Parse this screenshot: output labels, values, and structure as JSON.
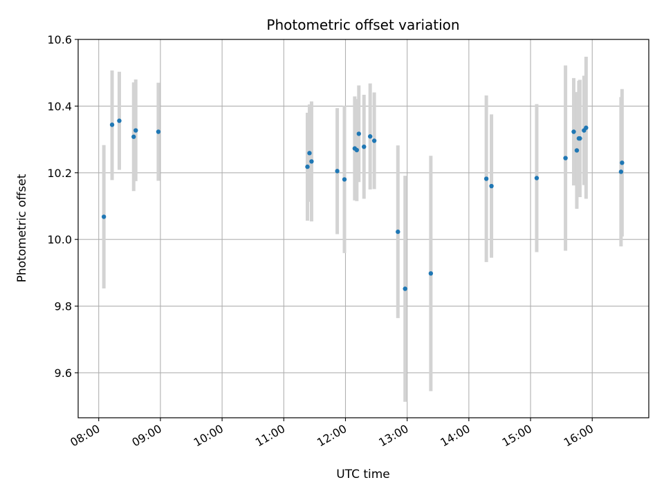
{
  "chart_data": {
    "type": "scatter",
    "title": "Photometric offset variation",
    "xlabel": "UTC time",
    "ylabel": "Photometric offset",
    "xlim": [
      "07:40",
      "16:55"
    ],
    "ylim": [
      9.465,
      10.6
    ],
    "x_ticks": [
      "08:00",
      "09:00",
      "10:00",
      "11:00",
      "12:00",
      "13:00",
      "14:00",
      "15:00",
      "16:00"
    ],
    "y_ticks": [
      9.6,
      9.8,
      10.0,
      10.2,
      10.4,
      10.6
    ],
    "y_tick_labels": [
      "9.6",
      "9.8",
      "10.0",
      "10.2",
      "10.4",
      "10.6"
    ],
    "grid": true,
    "colors": {
      "points": "#1f77b4",
      "errorbars": "#d3d3d3",
      "grid": "#b0b0b0"
    },
    "points": [
      {
        "x": "08:05",
        "y": 10.068,
        "low": 9.853,
        "high": 10.283
      },
      {
        "x": "08:13",
        "y": 10.344,
        "low": 10.178,
        "high": 10.507
      },
      {
        "x": "08:20",
        "y": 10.356,
        "low": 10.209,
        "high": 10.503
      },
      {
        "x": "08:34",
        "y": 10.308,
        "low": 10.145,
        "high": 10.471
      },
      {
        "x": "08:36",
        "y": 10.327,
        "low": 10.175,
        "high": 10.48
      },
      {
        "x": "08:58",
        "y": 10.323,
        "low": 10.176,
        "high": 10.47
      },
      {
        "x": "11:23",
        "y": 10.218,
        "low": 10.056,
        "high": 10.38
      },
      {
        "x": "11:25",
        "y": 10.259,
        "low": 10.113,
        "high": 10.405
      },
      {
        "x": "11:27",
        "y": 10.234,
        "low": 10.054,
        "high": 10.414
      },
      {
        "x": "11:52",
        "y": 10.205,
        "low": 10.016,
        "high": 10.394
      },
      {
        "x": "11:59",
        "y": 10.18,
        "low": 9.959,
        "high": 10.401
      },
      {
        "x": "12:09",
        "y": 10.273,
        "low": 10.117,
        "high": 10.429
      },
      {
        "x": "12:11",
        "y": 10.268,
        "low": 10.115,
        "high": 10.421
      },
      {
        "x": "12:13",
        "y": 10.317,
        "low": 10.172,
        "high": 10.462
      },
      {
        "x": "12:18",
        "y": 10.278,
        "low": 10.122,
        "high": 10.434
      },
      {
        "x": "12:24",
        "y": 10.309,
        "low": 10.15,
        "high": 10.468
      },
      {
        "x": "12:28",
        "y": 10.296,
        "low": 10.151,
        "high": 10.441
      },
      {
        "x": "12:51",
        "y": 10.023,
        "low": 9.764,
        "high": 10.282
      },
      {
        "x": "12:58",
        "y": 9.852,
        "low": 9.513,
        "high": 10.191
      },
      {
        "x": "13:23",
        "y": 9.898,
        "low": 9.545,
        "high": 10.251
      },
      {
        "x": "14:17",
        "y": 10.182,
        "low": 9.932,
        "high": 10.432
      },
      {
        "x": "14:22",
        "y": 10.16,
        "low": 9.945,
        "high": 10.375
      },
      {
        "x": "15:06",
        "y": 10.184,
        "low": 9.962,
        "high": 10.406
      },
      {
        "x": "15:34",
        "y": 10.244,
        "low": 9.966,
        "high": 10.522
      },
      {
        "x": "15:42",
        "y": 10.323,
        "low": 10.162,
        "high": 10.484
      },
      {
        "x": "15:45",
        "y": 10.267,
        "low": 10.092,
        "high": 10.442
      },
      {
        "x": "15:47",
        "y": 10.303,
        "low": 10.13,
        "high": 10.476
      },
      {
        "x": "15:48",
        "y": 10.303,
        "low": 10.127,
        "high": 10.479
      },
      {
        "x": "15:52",
        "y": 10.327,
        "low": 10.163,
        "high": 10.491
      },
      {
        "x": "15:54",
        "y": 10.335,
        "low": 10.122,
        "high": 10.548
      },
      {
        "x": "16:28",
        "y": 10.203,
        "low": 9.979,
        "high": 10.427
      },
      {
        "x": "16:29",
        "y": 10.23,
        "low": 10.009,
        "high": 10.451
      }
    ]
  }
}
